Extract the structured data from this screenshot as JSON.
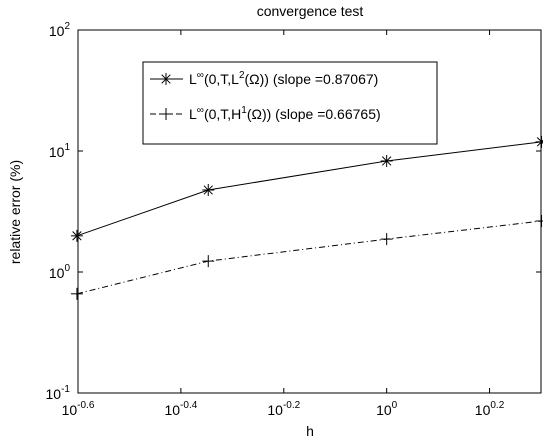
{
  "chart_data": {
    "type": "line",
    "title": "convergence test",
    "xlabel": "h",
    "ylabel": "relative error (%)",
    "xscale": "log",
    "yscale": "log",
    "grid": false,
    "legend": "upper left",
    "x": [
      0.25,
      0.45,
      1,
      2
    ],
    "series": [
      {
        "name": [
          {
            "text": "L"
          },
          {
            "text": "∞",
            "sup": true
          },
          {
            "text": "(0,T,L"
          },
          {
            "text": "2",
            "sup": true
          },
          {
            "text": "(Ω)) (slope =0.87067)"
          }
        ],
        "color": "#000000",
        "marker": "asterisk",
        "linestyle": "solid",
        "values": [
          1.99,
          4.76,
          8.27,
          11.9
        ]
      },
      {
        "name": [
          {
            "text": "L"
          },
          {
            "text": "∞",
            "sup": true
          },
          {
            "text": "(0,T,H"
          },
          {
            "text": "1",
            "sup": true
          },
          {
            "text": "(Ω)) (slope =0.66765)"
          }
        ],
        "color": "#000000",
        "marker": "plus",
        "linestyle": "dashdot",
        "values": [
          0.66,
          1.23,
          1.87,
          2.64
        ]
      }
    ],
    "xlim": [
      0.2512,
      1.9953
    ],
    "ylim": [
      0.1,
      100
    ],
    "xticks": [
      {
        "value": 0.2512,
        "label": "10",
        "exponent": "-0.6"
      },
      {
        "value": 0.3981,
        "label": "10",
        "exponent": "-0.4"
      },
      {
        "value": 0.631,
        "label": "10",
        "exponent": "-0.2"
      },
      {
        "value": 1,
        "label": "10",
        "exponent": "0"
      },
      {
        "value": 1.5849,
        "label": "10",
        "exponent": "0.2"
      }
    ],
    "yticks": [
      {
        "value": 0.1,
        "label": "10",
        "exponent": "-1"
      },
      {
        "value": 1,
        "label": "10",
        "exponent": "0"
      },
      {
        "value": 10,
        "label": "10",
        "exponent": "1"
      },
      {
        "value": 100,
        "label": "10",
        "exponent": "2"
      }
    ]
  }
}
